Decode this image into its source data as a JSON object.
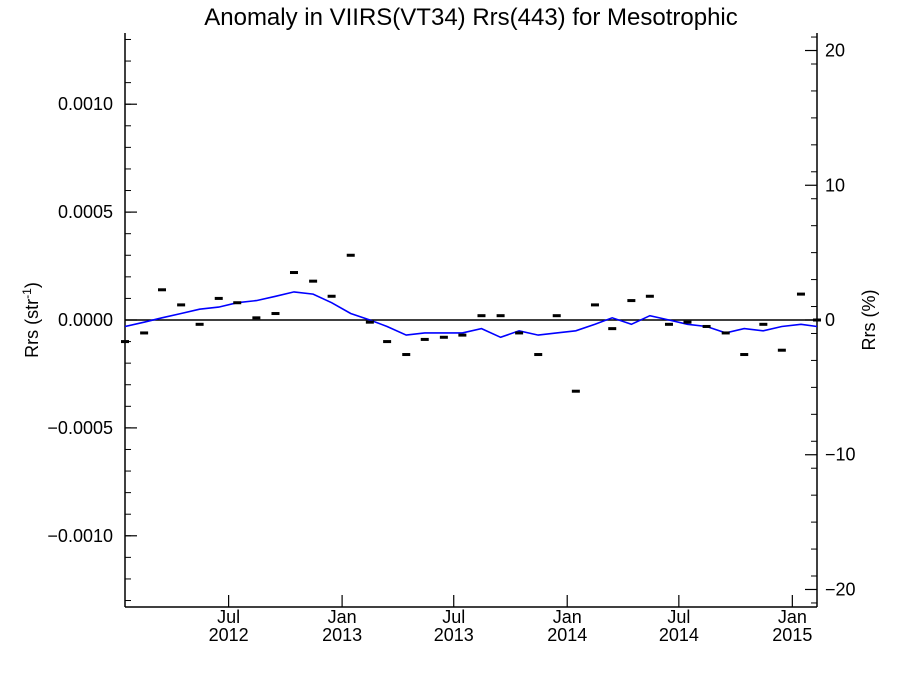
{
  "chart_data": {
    "type": "scatter",
    "title": "Anomaly in VIIRS(VT34) Rrs(443) for Mesotrophic",
    "ylabel_left": {
      "base": "Rrs (str",
      "superscript": "-1",
      "close": ")"
    },
    "ylabel_right": "Rrs (%)",
    "xlim": [
      "2012-01-15",
      "2015-02-10"
    ],
    "ylim_left": [
      -0.00133,
      0.00133
    ],
    "ylim_right": [
      -21.3,
      21.3
    ],
    "yticks_left": [
      {
        "value": 0.001,
        "label": "0.0010"
      },
      {
        "value": 0.0005,
        "label": "0.0005"
      },
      {
        "value": 0.0,
        "label": "0.0000"
      },
      {
        "value": -0.0005,
        "label": "−0.0005"
      },
      {
        "value": -0.001,
        "label": "−0.0010"
      }
    ],
    "yticks_right": [
      {
        "value": 20,
        "label": "20"
      },
      {
        "value": 10,
        "label": "10"
      },
      {
        "value": 0,
        "label": "0"
      },
      {
        "value": -10,
        "label": "−10"
      },
      {
        "value": -20,
        "label": "−20"
      }
    ],
    "xticks": [
      {
        "date": "2012-07-01",
        "month": "Jul",
        "year": "2012"
      },
      {
        "date": "2013-01-01",
        "month": "Jan",
        "year": "2013"
      },
      {
        "date": "2013-07-01",
        "month": "Jul",
        "year": "2013"
      },
      {
        "date": "2014-01-01",
        "month": "Jan",
        "year": "2014"
      },
      {
        "date": "2014-07-01",
        "month": "Jul",
        "year": "2014"
      },
      {
        "date": "2015-01-01",
        "month": "Jan",
        "year": "2015"
      }
    ],
    "reference_line": {
      "y": 0.0,
      "color": "#000000"
    },
    "colors": {
      "points": "#000000",
      "line": "#0000ff",
      "axes": "#000000"
    },
    "series": [
      {
        "type": "scatter",
        "marker": "dash",
        "x": [
          "2012-01-15",
          "2012-02-15",
          "2012-03-15",
          "2012-04-15",
          "2012-05-15",
          "2012-06-15",
          "2012-07-15",
          "2012-08-15",
          "2012-09-15",
          "2012-10-15",
          "2012-11-15",
          "2012-12-15",
          "2013-01-15",
          "2013-02-15",
          "2013-03-15",
          "2013-04-15",
          "2013-05-15",
          "2013-06-15",
          "2013-07-15",
          "2013-08-15",
          "2013-09-15",
          "2013-10-15",
          "2013-11-15",
          "2013-12-15",
          "2014-01-15",
          "2014-02-15",
          "2014-03-15",
          "2014-04-15",
          "2014-05-15",
          "2014-06-15",
          "2014-07-15",
          "2014-08-15",
          "2014-09-15",
          "2014-10-15",
          "2014-11-15",
          "2014-12-15",
          "2015-01-15",
          "2015-02-10"
        ],
        "y": [
          -0.0001,
          -6e-05,
          0.00014,
          7e-05,
          -2e-05,
          0.0001,
          8e-05,
          1e-05,
          3e-05,
          0.00022,
          0.00018,
          0.00011,
          0.0003,
          -1e-05,
          -0.0001,
          -0.00016,
          -9e-05,
          -8e-05,
          -7e-05,
          2e-05,
          2e-05,
          -6e-05,
          -0.00016,
          2e-05,
          -0.00033,
          7e-05,
          -4e-05,
          9e-05,
          0.00011,
          -2e-05,
          -1e-05,
          -3e-05,
          -6e-05,
          -0.00016,
          -2e-05,
          -0.00014,
          0.00012,
          0.0
        ]
      },
      {
        "type": "line",
        "x": [
          "2012-01-15",
          "2012-02-15",
          "2012-03-15",
          "2012-04-15",
          "2012-05-15",
          "2012-06-15",
          "2012-07-15",
          "2012-08-15",
          "2012-09-15",
          "2012-10-15",
          "2012-11-15",
          "2012-12-15",
          "2013-01-15",
          "2013-02-15",
          "2013-03-15",
          "2013-04-15",
          "2013-05-15",
          "2013-06-15",
          "2013-07-15",
          "2013-08-15",
          "2013-09-15",
          "2013-10-15",
          "2013-11-15",
          "2013-12-15",
          "2014-01-15",
          "2014-02-15",
          "2014-03-15",
          "2014-04-15",
          "2014-05-15",
          "2014-06-15",
          "2014-07-15",
          "2014-08-15",
          "2014-09-15",
          "2014-10-15",
          "2014-11-15",
          "2014-12-15",
          "2015-01-15",
          "2015-02-10"
        ],
        "y": [
          -3e-05,
          -1e-05,
          1e-05,
          3e-05,
          5e-05,
          6e-05,
          8e-05,
          9e-05,
          0.00011,
          0.00013,
          0.00012,
          8e-05,
          3e-05,
          0.0,
          -3e-05,
          -7e-05,
          -6e-05,
          -6e-05,
          -6e-05,
          -4e-05,
          -8e-05,
          -5e-05,
          -7e-05,
          -6e-05,
          -5e-05,
          -2e-05,
          1e-05,
          -2e-05,
          2e-05,
          0.0,
          -2e-05,
          -3e-05,
          -6e-05,
          -4e-05,
          -5e-05,
          -3e-05,
          -2e-05,
          -3e-05
        ]
      }
    ]
  }
}
